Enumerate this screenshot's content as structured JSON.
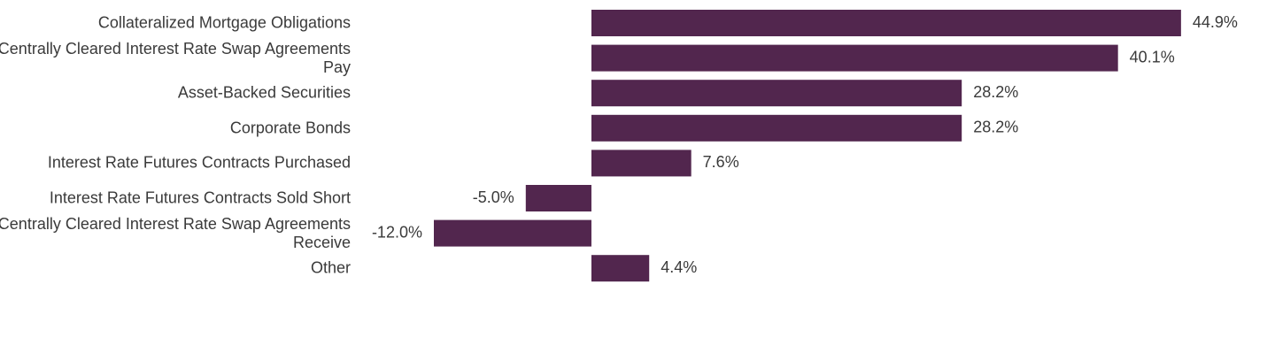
{
  "chart_data": {
    "type": "hbar",
    "categories": [
      "Collateralized Mortgage Obligations",
      "Centrally Cleared Interest Rate Swap Agreements\nPay",
      "Asset-Backed Securities",
      "Corporate Bonds",
      "Interest Rate Futures Contracts Purchased",
      "Interest Rate Futures Contracts Sold Short",
      "Centrally Cleared Interest Rate Swap Agreements\nReceive",
      "Other"
    ],
    "values": [
      44.9,
      40.1,
      28.2,
      28.2,
      7.6,
      -5.0,
      -12.0,
      4.4
    ],
    "value_labels": [
      "44.9%",
      "40.1%",
      "28.2%",
      "28.2%",
      "7.6%",
      "-5.0%",
      "-12.0%",
      "4.4%"
    ],
    "color": "#52264e",
    "xlim": [
      -15,
      50
    ]
  }
}
